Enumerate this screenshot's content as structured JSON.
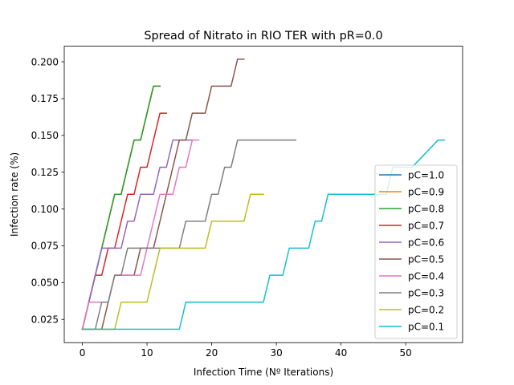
{
  "chart_data": {
    "type": "line",
    "title": "Spread of Nitrato in RIO TER with pR=0.0",
    "xlabel": "Infection Time (Nº Iterations)",
    "ylabel": "Infection rate (%)",
    "xlim": [
      -2.8,
      58.8
    ],
    "ylim": [
      0.0092,
      0.2106
    ],
    "xticks": [
      0,
      10,
      20,
      30,
      40,
      50
    ],
    "yticks": [
      0.025,
      0.05,
      0.075,
      0.1,
      0.125,
      0.15,
      0.175,
      0.2
    ],
    "ytick_labels": [
      "0.025",
      "0.050",
      "0.075",
      "0.100",
      "0.125",
      "0.150",
      "0.175",
      "0.200"
    ],
    "grid": false,
    "legend_position": "lower right",
    "series": [
      {
        "name": "pC=1.0",
        "color": "#1f77b4",
        "x": [
          0,
          1,
          2,
          3,
          4,
          5,
          6,
          7,
          8,
          9,
          10,
          11,
          12
        ],
        "y": [
          0.0183,
          0.0367,
          0.055,
          0.0734,
          0.0917,
          0.11,
          0.11,
          0.1284,
          0.1468,
          0.1468,
          0.1651,
          0.1835,
          0.1835
        ]
      },
      {
        "name": "pC=0.9",
        "color": "#ff7f0e",
        "x": [
          0,
          1,
          2,
          3,
          4,
          5,
          6,
          7,
          8,
          9,
          10,
          11,
          12
        ],
        "y": [
          0.0183,
          0.0367,
          0.055,
          0.0734,
          0.0917,
          0.11,
          0.11,
          0.1284,
          0.1468,
          0.1468,
          0.1651,
          0.1835,
          0.1835
        ]
      },
      {
        "name": "pC=0.8",
        "color": "#2ca02c",
        "x": [
          0,
          1,
          2,
          3,
          4,
          5,
          6,
          7,
          8,
          9,
          10,
          11,
          12
        ],
        "y": [
          0.0183,
          0.0367,
          0.055,
          0.0734,
          0.0917,
          0.11,
          0.11,
          0.1284,
          0.1468,
          0.1468,
          0.1651,
          0.1835,
          0.1835
        ]
      },
      {
        "name": "pC=0.7",
        "color": "#d62728",
        "x": [
          0,
          1,
          2,
          3,
          4,
          5,
          6,
          7,
          8,
          9,
          10,
          11,
          12,
          13
        ],
        "y": [
          0.0183,
          0.0367,
          0.055,
          0.055,
          0.0734,
          0.0734,
          0.0917,
          0.11,
          0.11,
          0.1284,
          0.1284,
          0.1468,
          0.1651,
          0.1651
        ]
      },
      {
        "name": "pC=0.6",
        "color": "#9467bd",
        "x": [
          0,
          1,
          2,
          3,
          4,
          5,
          6,
          7,
          8,
          9,
          10,
          11,
          12,
          13,
          14,
          15,
          16,
          17
        ],
        "y": [
          0.0183,
          0.0367,
          0.055,
          0.0734,
          0.0734,
          0.0734,
          0.0734,
          0.0917,
          0.0917,
          0.11,
          0.11,
          0.11,
          0.1284,
          0.1284,
          0.1468,
          0.1468,
          0.1468,
          0.1468
        ]
      },
      {
        "name": "pC=0.5",
        "color": "#8c564b",
        "x": [
          0,
          1,
          2,
          3,
          4,
          5,
          6,
          7,
          8,
          9,
          10,
          11,
          12,
          13,
          14,
          15,
          16,
          17,
          18,
          19,
          20,
          21,
          22,
          23,
          24,
          25
        ],
        "y": [
          0.0183,
          0.0183,
          0.0183,
          0.0183,
          0.0367,
          0.055,
          0.055,
          0.055,
          0.055,
          0.0734,
          0.0734,
          0.0734,
          0.0917,
          0.11,
          0.1284,
          0.1468,
          0.1468,
          0.1651,
          0.1651,
          0.1651,
          0.1835,
          0.1835,
          0.1835,
          0.1835,
          0.2018,
          0.2018
        ]
      },
      {
        "name": "pC=0.4",
        "color": "#e377c2",
        "x": [
          0,
          1,
          2,
          3,
          4,
          5,
          6,
          7,
          8,
          9,
          10,
          11,
          12,
          13,
          14,
          15,
          16,
          17,
          18
        ],
        "y": [
          0.0183,
          0.0367,
          0.0367,
          0.0367,
          0.0367,
          0.055,
          0.055,
          0.055,
          0.055,
          0.055,
          0.0734,
          0.0917,
          0.11,
          0.11,
          0.11,
          0.1284,
          0.1284,
          0.1468,
          0.1468
        ]
      },
      {
        "name": "pC=0.3",
        "color": "#7f7f7f",
        "x": [
          0,
          2,
          3,
          4,
          5,
          6,
          7,
          8,
          9,
          15,
          16,
          19,
          20,
          21,
          22,
          23,
          24,
          33
        ],
        "y": [
          0.0183,
          0.0183,
          0.0367,
          0.0367,
          0.055,
          0.055,
          0.0734,
          0.0734,
          0.0734,
          0.0734,
          0.0917,
          0.0917,
          0.11,
          0.11,
          0.1284,
          0.1284,
          0.1468,
          0.1468
        ]
      },
      {
        "name": "pC=0.2",
        "color": "#bcbd22",
        "x": [
          0,
          5,
          6,
          10,
          12,
          19,
          20,
          25,
          26,
          28
        ],
        "y": [
          0.0183,
          0.0183,
          0.0367,
          0.0367,
          0.0734,
          0.0734,
          0.0917,
          0.0917,
          0.11,
          0.11
        ]
      },
      {
        "name": "pC=0.1",
        "color": "#17becf",
        "x": [
          0,
          15,
          16,
          28,
          29,
          31,
          32,
          35,
          36,
          37,
          38,
          47,
          48,
          50,
          51,
          55,
          56
        ],
        "y": [
          0.0183,
          0.0183,
          0.0367,
          0.0367,
          0.055,
          0.055,
          0.0734,
          0.0734,
          0.0917,
          0.0917,
          0.11,
          0.11,
          0.1284,
          0.1284,
          0.1284,
          0.1468,
          0.1468
        ]
      }
    ]
  }
}
